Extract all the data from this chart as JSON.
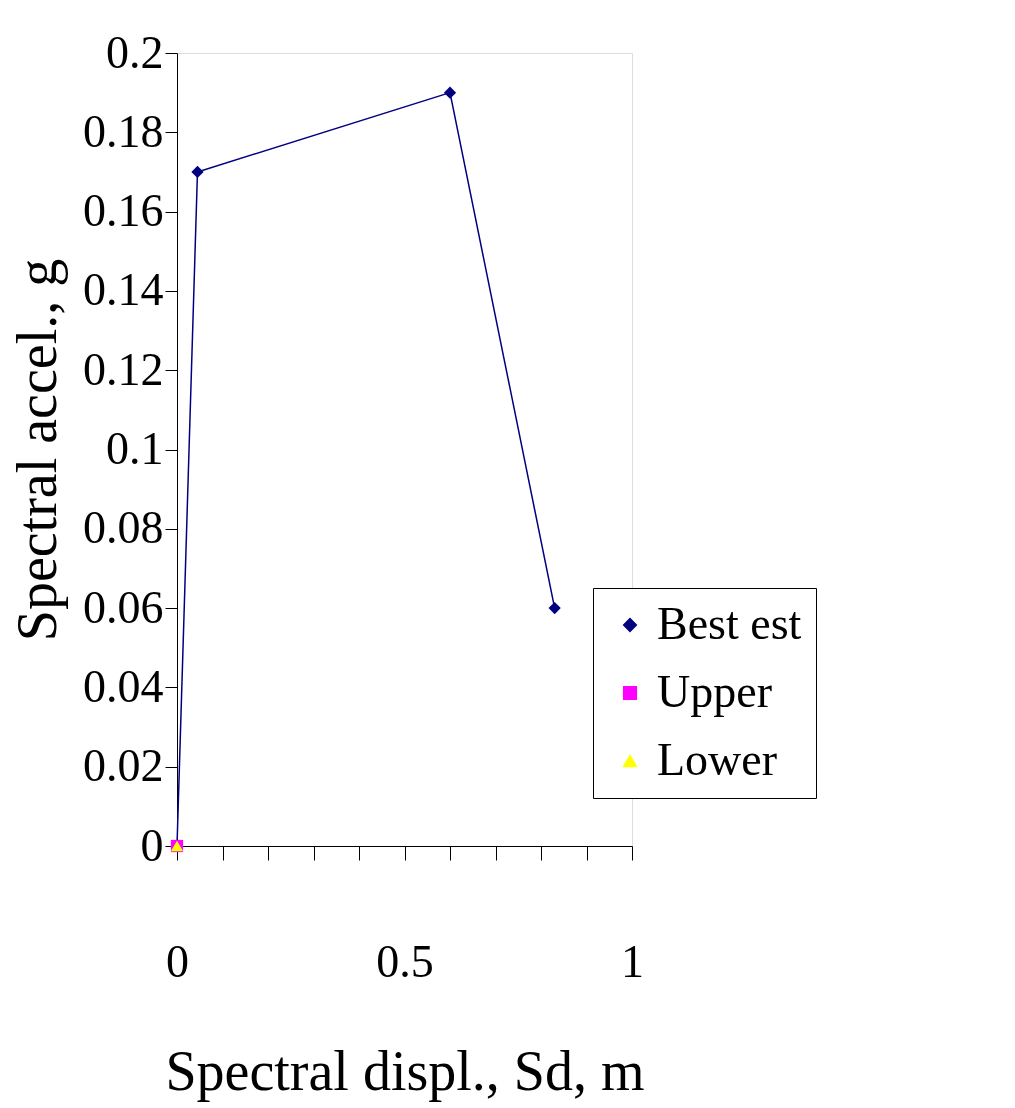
{
  "chart_data": {
    "type": "line",
    "xlabel": "Spectral displ., Sd, m",
    "ylabel": "Spectral accel., g",
    "series": [
      {
        "name": "Best est",
        "color": "#000080",
        "marker": "diamond",
        "x": [
          0,
          0.045,
          0.6,
          0.83
        ],
        "values": [
          0,
          0.17,
          0.19,
          0.06
        ]
      },
      {
        "name": "Upper",
        "color": "#ff00ff",
        "marker": "square",
        "x": [
          0
        ],
        "values": [
          0
        ]
      },
      {
        "name": "Lower",
        "color": "#ffff00",
        "marker": "triangle",
        "x": [
          0
        ],
        "values": [
          0
        ]
      }
    ],
    "xlim": [
      0,
      1
    ],
    "ylim": [
      0,
      0.2
    ],
    "xticks": [
      0,
      {
        "value": 0.1,
        "label": null
      },
      {
        "value": 0.2,
        "label": null
      },
      {
        "value": 0.3,
        "label": null
      },
      {
        "value": 0.4,
        "label": null
      },
      0.5,
      {
        "value": 0.6,
        "label": null
      },
      {
        "value": 0.7,
        "label": null
      },
      {
        "value": 0.8,
        "label": null
      },
      {
        "value": 0.9,
        "label": null
      },
      1
    ],
    "yticks": [
      0,
      0.02,
      0.04,
      0.06,
      0.08,
      0.1,
      0.12,
      0.14,
      0.16,
      0.18,
      0.2
    ],
    "grid": false,
    "legend": "bottom right",
    "line_style": "solid"
  }
}
